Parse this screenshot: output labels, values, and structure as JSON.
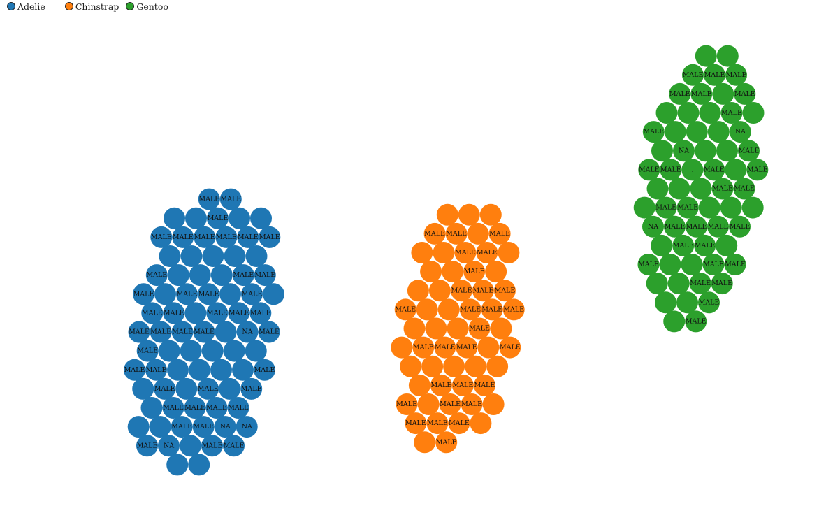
{
  "chart_data": {
    "type": "scatter",
    "title": "",
    "xlabel": "",
    "ylabel": "",
    "legend_position": "top-left",
    "grid": false,
    "series": [
      {
        "name": "Adelie",
        "color": "#1f77b4",
        "labels": [
          "MALE",
          "MALE",
          "MALE",
          "MALE",
          "MALE",
          "MALE",
          "MALE",
          "MALE",
          "MALE",
          "MALE",
          "NA",
          "MALE",
          "MALE",
          "MALE",
          "MALE",
          "MALE",
          "MALE",
          "MALE",
          "MALE",
          "MALE",
          "MALE",
          "MALE",
          "MALE",
          "MALE",
          "MALE",
          "MALE",
          "MALE",
          "MALE",
          "MALE",
          "MALE",
          "MALE",
          "MALE",
          "MALE",
          "MALE",
          "MALE",
          "MALE",
          "MALE",
          "NA",
          "NA",
          "MALE",
          "MALE",
          "MALE",
          "MALE",
          "MALE",
          "MALE",
          "NA",
          "",
          "",
          "",
          "",
          "",
          "",
          "",
          "",
          "",
          "",
          "",
          "",
          "",
          "",
          "",
          "",
          "",
          "",
          "",
          "",
          "",
          "",
          "",
          "",
          "",
          "",
          "",
          "",
          "",
          "",
          "",
          "",
          "",
          "",
          "",
          "",
          "",
          "",
          "",
          "",
          "",
          ""
        ]
      },
      {
        "name": "Chinstrap",
        "color": "#ff7f0e",
        "labels": [
          "MALE",
          "MALE",
          "MALE",
          "MALE",
          "MALE",
          "MALE",
          "MALE",
          "MALE",
          "MALE",
          "MALE",
          "MALE",
          "MALE",
          "MALE",
          "MALE",
          "MALE",
          "MALE",
          "MALE",
          "MALE",
          "MALE",
          "MALE",
          "MALE",
          "MALE",
          "MALE",
          "MALE",
          "MALE",
          "MALE",
          "MALE",
          "MALE",
          "",
          "",
          "",
          "",
          "",
          "",
          "",
          "",
          "",
          "",
          "",
          "",
          "",
          "",
          "",
          "",
          "",
          "",
          "",
          "",
          "",
          "",
          "",
          "",
          "",
          "",
          "",
          "",
          "",
          ""
        ]
      },
      {
        "name": "Gentoo",
        "color": "#2ca02c",
        "labels": [
          "MALE",
          "MALE",
          "MALE",
          "MALE",
          "MALE",
          "MALE",
          "MALE",
          "MALE",
          "MALE",
          "MALE",
          "MALE",
          "MALE",
          "MALE",
          "MALE",
          "MALE",
          "MALE",
          "MALE",
          "MALE",
          "MALE",
          "MALE",
          "MALE",
          "MALE",
          "MALE",
          "MALE",
          "MALE",
          "MALE",
          "MALE",
          "MALE",
          "MALE",
          "MALE",
          "NA",
          "NA",
          "NA",
          ".",
          "",
          "",
          "",
          "",
          "",
          "",
          "",
          "",
          "",
          "",
          "",
          "",
          "",
          "",
          "",
          "",
          "",
          "",
          "",
          "",
          "",
          "",
          "",
          "",
          "",
          "",
          "",
          "",
          "",
          ""
        ]
      }
    ]
  }
}
